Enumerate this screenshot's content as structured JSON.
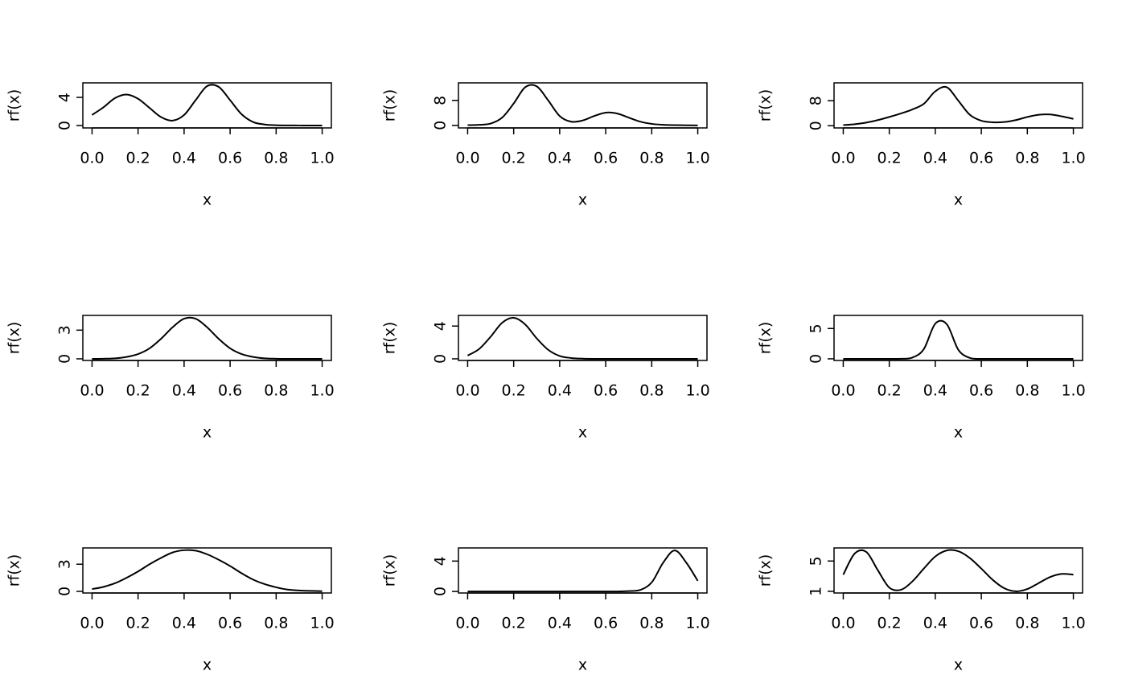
{
  "chart_data": [
    {
      "type": "line",
      "xlabel": "x",
      "ylabel": "rf(x)",
      "color": "#000000",
      "x": [
        0,
        0.05,
        0.1,
        0.15,
        0.2,
        0.25,
        0.3,
        0.35,
        0.4,
        0.45,
        0.5,
        0.55,
        0.6,
        0.65,
        0.7,
        0.75,
        0.8,
        0.85,
        0.9,
        0.95,
        1
      ],
      "values": [
        1.5,
        2.6,
        3.9,
        4.4,
        3.8,
        2.5,
        1.2,
        0.7,
        1.5,
        3.6,
        5.6,
        5.5,
        3.6,
        1.6,
        0.5,
        0.15,
        0.05,
        0.02,
        0.01,
        0,
        0
      ],
      "xlim": [
        -0.04,
        1.04
      ],
      "xticks": [
        {
          "value": 0,
          "label": "0.0"
        },
        0.2,
        0.4,
        0.6,
        0.8,
        {
          "value": 1,
          "label": "1.0"
        }
      ],
      "ylim": [
        -0.34,
        6.06
      ],
      "yticks": [
        0,
        4
      ]
    },
    {
      "type": "line",
      "xlabel": "x",
      "ylabel": "rf(x)",
      "color": "#000000",
      "x": [
        0,
        0.05,
        0.1,
        0.15,
        0.2,
        0.25,
        0.3,
        0.35,
        0.4,
        0.45,
        0.5,
        0.55,
        0.6,
        0.65,
        0.7,
        0.75,
        0.8,
        0.85,
        0.9,
        0.95,
        1
      ],
      "values": [
        0.1,
        0.2,
        0.6,
        2.5,
        7,
        12.2,
        12.5,
        8,
        3,
        1.2,
        1.6,
        3,
        4.1,
        3.8,
        2.5,
        1.2,
        0.5,
        0.2,
        0.1,
        0.05,
        0
      ],
      "xlim": [
        -0.04,
        1.04
      ],
      "xticks": [
        {
          "value": 0,
          "label": "0.0"
        },
        0.2,
        0.4,
        0.6,
        0.8,
        {
          "value": 1,
          "label": "1.0"
        }
      ],
      "ylim": [
        -0.8,
        13.6
      ],
      "yticks": [
        0,
        8
      ]
    },
    {
      "type": "line",
      "xlabel": "x",
      "ylabel": "rf(x)",
      "color": "#000000",
      "x": [
        0,
        0.05,
        0.1,
        0.15,
        0.2,
        0.25,
        0.3,
        0.35,
        0.4,
        0.45,
        0.5,
        0.55,
        0.6,
        0.65,
        0.7,
        0.75,
        0.8,
        0.85,
        0.9,
        0.95,
        1
      ],
      "values": [
        0.2,
        0.5,
        1,
        1.8,
        2.8,
        3.9,
        5.2,
        7,
        11,
        12.3,
        8,
        3.5,
        1.6,
        1.1,
        1.2,
        1.8,
        2.8,
        3.5,
        3.6,
        3,
        2.2
      ],
      "xlim": [
        -0.04,
        1.04
      ],
      "xticks": [
        {
          "value": 0,
          "label": "0.0"
        },
        0.2,
        0.4,
        0.6,
        0.8,
        {
          "value": 1,
          "label": "1.0"
        }
      ],
      "ylim": [
        -0.7,
        13.7
      ],
      "yticks": [
        0,
        8
      ]
    },
    {
      "type": "line",
      "xlabel": "x",
      "ylabel": "rf(x)",
      "color": "#000000",
      "x": [
        0,
        0.05,
        0.1,
        0.15,
        0.2,
        0.25,
        0.3,
        0.35,
        0.4,
        0.45,
        0.5,
        0.55,
        0.6,
        0.65,
        0.7,
        0.75,
        0.8,
        0.85,
        0.9,
        0.95,
        1
      ],
      "values": [
        0,
        0.01,
        0.05,
        0.2,
        0.5,
        1.1,
        2.1,
        3.3,
        4.2,
        4.2,
        3.3,
        2.1,
        1.1,
        0.5,
        0.2,
        0.05,
        0.01,
        0,
        0,
        0,
        0
      ],
      "xlim": [
        -0.04,
        1.04
      ],
      "xticks": [
        {
          "value": 0,
          "label": "0.0"
        },
        0.2,
        0.4,
        0.6,
        0.8,
        {
          "value": 1,
          "label": "1.0"
        }
      ],
      "ylim": [
        -0.17,
        4.54
      ],
      "yticks": [
        0,
        3
      ]
    },
    {
      "type": "line",
      "xlabel": "x",
      "ylabel": "rf(x)",
      "color": "#000000",
      "x": [
        0,
        0.05,
        0.1,
        0.15,
        0.2,
        0.25,
        0.3,
        0.35,
        0.4,
        0.45,
        0.5,
        0.55,
        0.6,
        0.65,
        0.7,
        0.75,
        0.8,
        0.85,
        0.9,
        0.95,
        1
      ],
      "values": [
        0.4,
        1.2,
        2.7,
        4.4,
        5,
        4.2,
        2.5,
        1.1,
        0.35,
        0.1,
        0.02,
        0,
        0,
        0,
        0,
        0,
        0,
        0,
        0,
        0,
        0
      ],
      "xlim": [
        -0.04,
        1.04
      ],
      "xticks": [
        {
          "value": 0,
          "label": "0.0"
        },
        0.2,
        0.4,
        0.6,
        0.8,
        {
          "value": 1,
          "label": "1.0"
        }
      ],
      "ylim": [
        -0.2,
        5.3
      ],
      "yticks": [
        0,
        4
      ]
    },
    {
      "type": "line",
      "xlabel": "x",
      "ylabel": "rf(x)",
      "color": "#000000",
      "x": [
        0,
        0.05,
        0.1,
        0.15,
        0.2,
        0.25,
        0.3,
        0.35,
        0.4,
        0.45,
        0.5,
        0.55,
        0.6,
        0.65,
        0.7,
        0.75,
        0.8,
        0.85,
        0.9,
        0.95,
        1
      ],
      "values": [
        0,
        0,
        0,
        0,
        0,
        0.01,
        0.2,
        1.6,
        5.8,
        5.7,
        1.5,
        0.15,
        0,
        0,
        0,
        0,
        0,
        0,
        0,
        0,
        0
      ],
      "xlim": [
        -0.04,
        1.04
      ],
      "xticks": [
        {
          "value": 0,
          "label": "0.0"
        },
        0.2,
        0.4,
        0.6,
        0.8,
        {
          "value": 1,
          "label": "1.0"
        }
      ],
      "ylim": [
        -0.27,
        7.16
      ],
      "yticks": [
        0,
        5
      ]
    },
    {
      "type": "line",
      "xlabel": "x",
      "ylabel": "rf(x)",
      "color": "#000000",
      "x": [
        0,
        0.05,
        0.1,
        0.15,
        0.2,
        0.25,
        0.3,
        0.35,
        0.4,
        0.45,
        0.5,
        0.55,
        0.6,
        0.65,
        0.7,
        0.75,
        0.8,
        0.85,
        0.9,
        0.95,
        1
      ],
      "values": [
        0.25,
        0.5,
        0.9,
        1.5,
        2.2,
        3,
        3.7,
        4.3,
        4.55,
        4.5,
        4.1,
        3.5,
        2.8,
        2,
        1.3,
        0.8,
        0.45,
        0.2,
        0.1,
        0.05,
        0.02
      ],
      "xlim": [
        -0.04,
        1.04
      ],
      "xticks": [
        {
          "value": 0,
          "label": "0.0"
        },
        0.2,
        0.4,
        0.6,
        0.8,
        {
          "value": 1,
          "label": "1.0"
        }
      ],
      "ylim": [
        -0.18,
        4.8
      ],
      "yticks": [
        0,
        3
      ]
    },
    {
      "type": "line",
      "xlabel": "x",
      "ylabel": "rf(x)",
      "color": "#000000",
      "x": [
        0,
        0.05,
        0.1,
        0.15,
        0.2,
        0.25,
        0.3,
        0.35,
        0.4,
        0.45,
        0.5,
        0.55,
        0.6,
        0.65,
        0.7,
        0.75,
        0.8,
        0.85,
        0.9,
        0.95,
        1
      ],
      "values": [
        0,
        0,
        0,
        0,
        0,
        0,
        0,
        0,
        0,
        0,
        0,
        0,
        0,
        0,
        0.05,
        0.2,
        1.2,
        3.8,
        5.4,
        3.8,
        1.4
      ],
      "xlim": [
        -0.04,
        1.04
      ],
      "xticks": [
        {
          "value": 0,
          "label": "0.0"
        },
        0.2,
        0.4,
        0.6,
        0.8,
        {
          "value": 1,
          "label": "1.0"
        }
      ],
      "ylim": [
        -0.2,
        5.73
      ],
      "yticks": [
        0,
        4
      ]
    },
    {
      "type": "line",
      "xlabel": "x",
      "ylabel": "rf(x)",
      "color": "#000000",
      "x": [
        0,
        0.05,
        0.1,
        0.15,
        0.2,
        0.25,
        0.3,
        0.35,
        0.4,
        0.45,
        0.5,
        0.55,
        0.6,
        0.65,
        0.7,
        0.75,
        0.8,
        0.85,
        0.9,
        0.95,
        1
      ],
      "values": [
        3.2,
        6,
        6.2,
        3.8,
        1.5,
        1.2,
        2.3,
        4,
        5.6,
        6.4,
        6.3,
        5.4,
        4,
        2.5,
        1.4,
        1,
        1.3,
        2.1,
        2.9,
        3.3,
        3.2
      ],
      "xlim": [
        -0.04,
        1.04
      ],
      "xticks": [
        {
          "value": 0,
          "label": "0.0"
        },
        0.2,
        0.4,
        0.6,
        0.8,
        {
          "value": 1,
          "label": "1.0"
        }
      ],
      "ylim": [
        0.78,
        6.73
      ],
      "yticks": [
        1,
        5
      ]
    }
  ]
}
